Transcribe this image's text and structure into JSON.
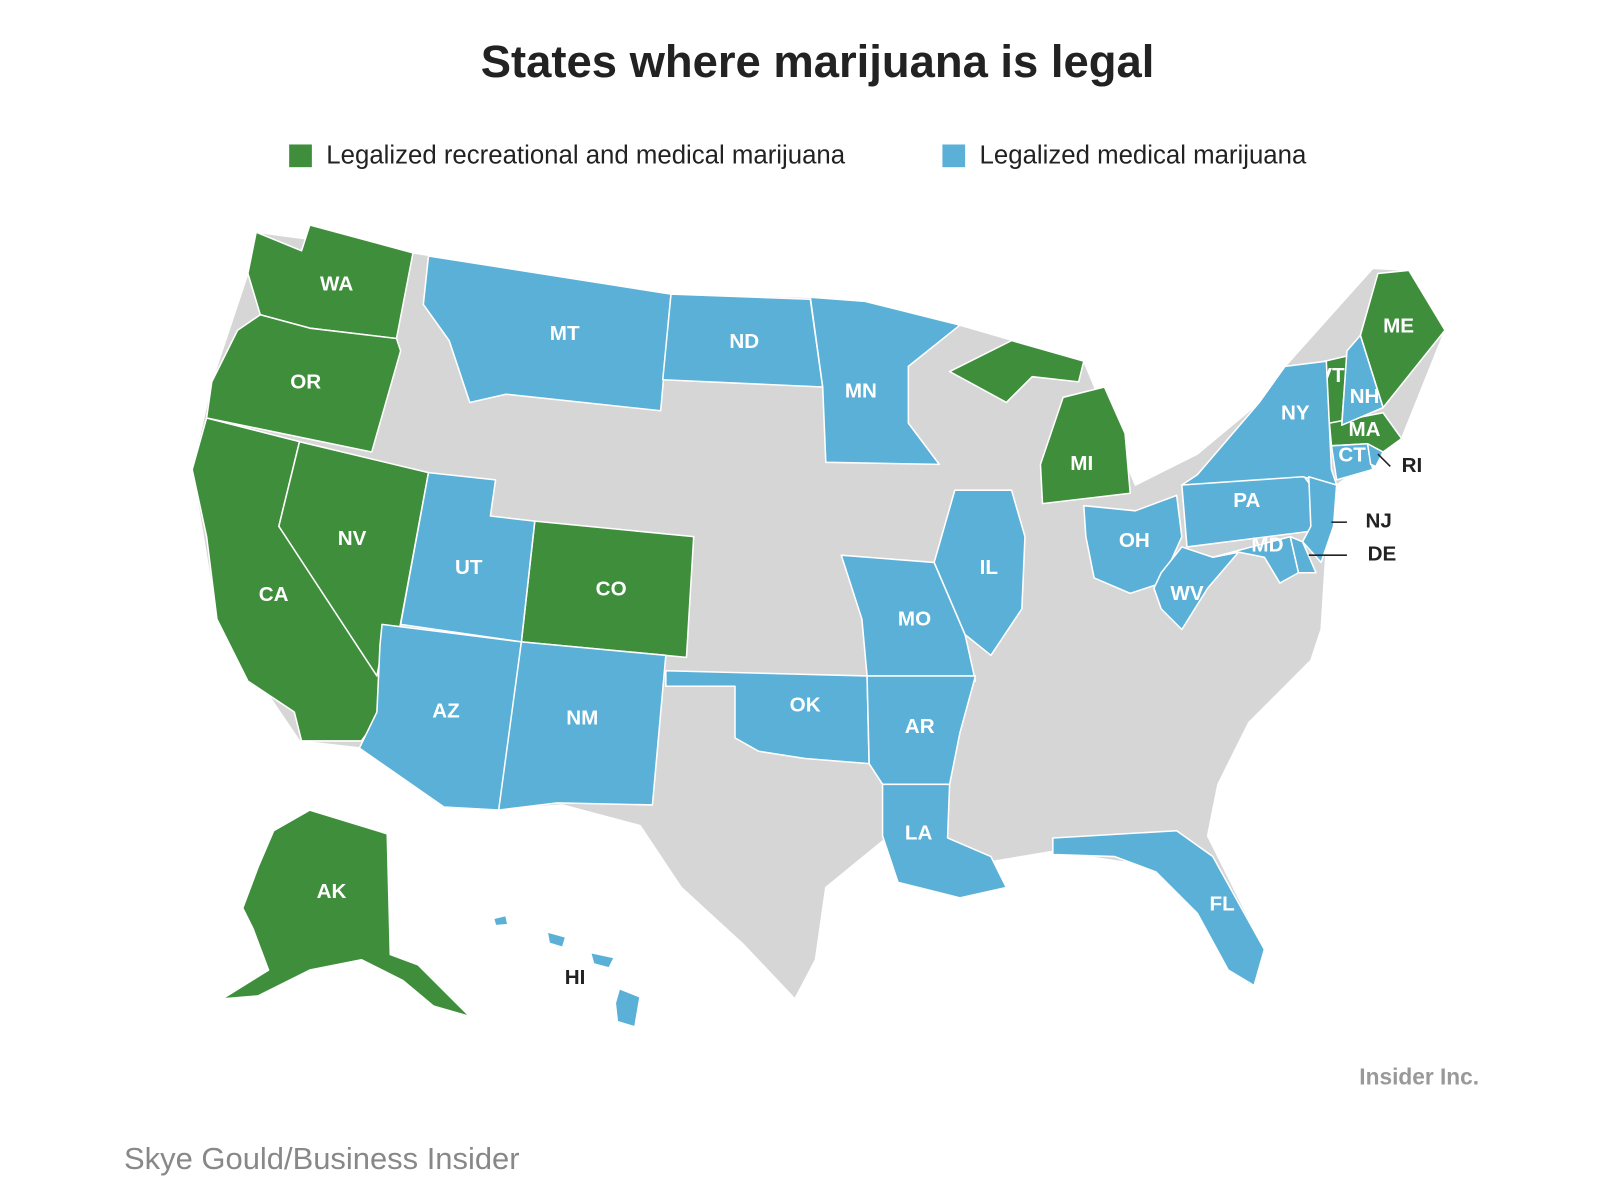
{
  "title": "States where marijuana is legal",
  "legend": [
    {
      "label": "Legalized recreational and medical marijuana",
      "color": "#3e8e3b",
      "states": [
        "WA",
        "OR",
        "CA",
        "NV",
        "CO",
        "AK",
        "MI",
        "VT",
        "ME",
        "MA"
      ]
    },
    {
      "label": "Legalized medical marijuana",
      "color": "#5ab0d6",
      "states": [
        "MT",
        "ND",
        "MN",
        "UT",
        "AZ",
        "NM",
        "OK",
        "MO",
        "AR",
        "LA",
        "IL",
        "OH",
        "WV",
        "PA",
        "NY",
        "NH",
        "CT",
        "RI",
        "NJ",
        "DE",
        "MD",
        "FL",
        "HI"
      ]
    }
  ],
  "logo": "Insider Inc.",
  "credit": "Skye Gould/Business Insider"
}
